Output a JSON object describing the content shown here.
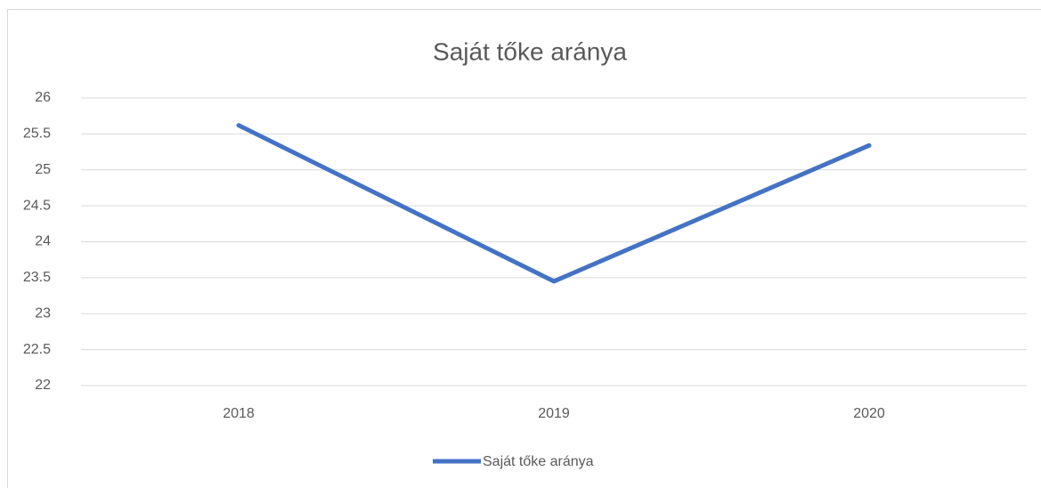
{
  "chart_data": {
    "type": "line",
    "title": "Saját tőke aránya",
    "categories": [
      "2018",
      "2019",
      "2020"
    ],
    "series": [
      {
        "name": "Saját tőke aránya",
        "color": "#4472c4",
        "values": [
          25.62,
          23.45,
          25.34
        ]
      }
    ],
    "ylim": [
      22,
      26
    ],
    "yticks": [
      22,
      22.5,
      23,
      23.5,
      24,
      24.5,
      25,
      25.5,
      26
    ],
    "grid": true,
    "legend": "bottom"
  }
}
